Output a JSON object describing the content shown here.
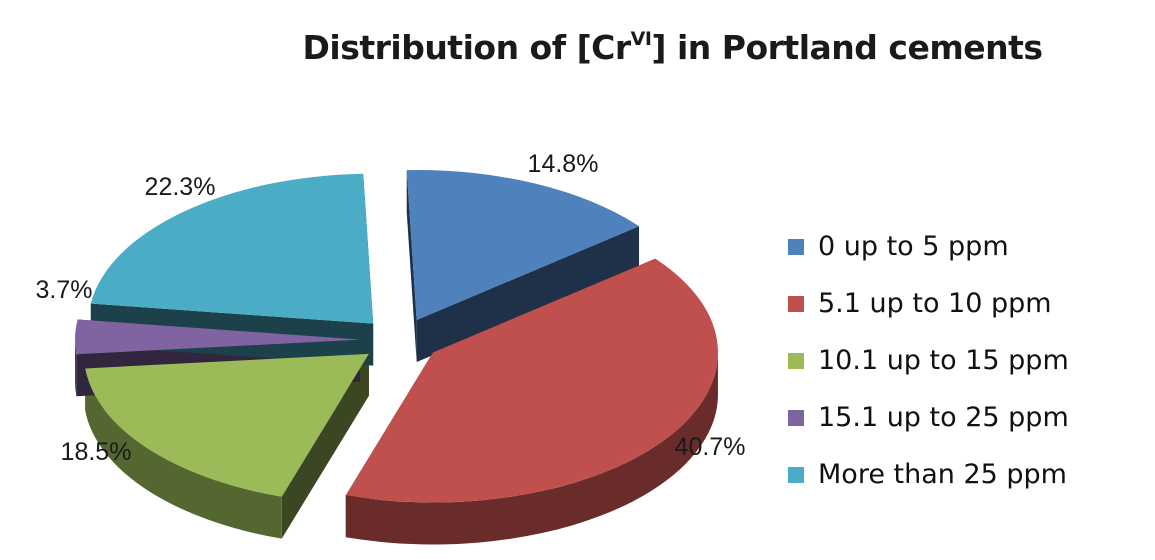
{
  "chart_data": {
    "type": "pie",
    "title": {
      "main_before": "Distribution of [Cr",
      "superscript": "VI",
      "main_after": "] in Portland cements"
    },
    "slices": [
      {
        "label": "0 up to 5 ppm",
        "value": 14.8,
        "value_label": "14.8%",
        "color": "#4f81bd"
      },
      {
        "label": "5.1 up to 10 ppm",
        "value": 40.7,
        "value_label": "40.7%",
        "color": "#c0504d"
      },
      {
        "label": "10.1 up to 15 ppm",
        "value": 18.5,
        "value_label": "18.5%",
        "color": "#9bbb59"
      },
      {
        "label": "15.1 up to 25 ppm",
        "value": 3.7,
        "value_label": "3.7%",
        "color": "#8064a2"
      },
      {
        "label": "More than 25 ppm",
        "value": 22.3,
        "value_label": "22.3%",
        "color": "#4bacc6"
      }
    ],
    "style": "3d-exploded",
    "legend_position": "right"
  }
}
